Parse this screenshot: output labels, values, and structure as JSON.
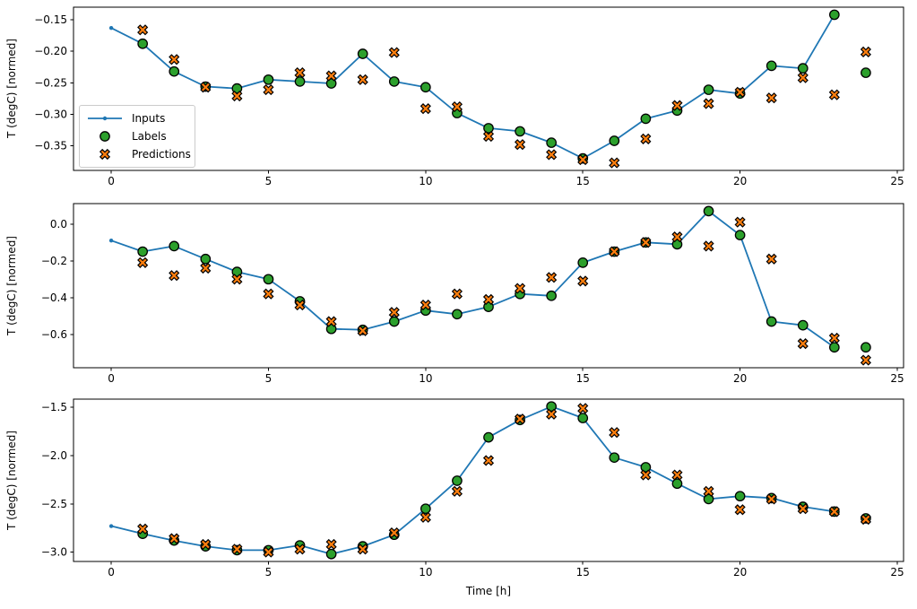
{
  "figure": {
    "xlabel": "Time [h]",
    "ylabel": "T (degC) [normed]",
    "background": "#ffffff",
    "colors": {
      "inputs": "#1f77b4",
      "labels": "#2ca02c",
      "predictions": "#ff7f0e",
      "marker_edge": "#000000",
      "spine": "#000000"
    },
    "legend": {
      "location": "lower left of first subplot",
      "items": [
        {
          "label": "Inputs",
          "marker": "line-with-dot",
          "color": "#1f77b4"
        },
        {
          "label": "Labels",
          "marker": "circle",
          "color": "#2ca02c",
          "edge": "#000000"
        },
        {
          "label": "Predictions",
          "marker": "thick-x",
          "color": "#ff7f0e",
          "edge": "#000000"
        }
      ]
    }
  },
  "chart_data": [
    {
      "type": "line",
      "title": "",
      "xlabel": "",
      "ylabel": "T (degC) [normed]",
      "grid": false,
      "xlim": [
        -1.2,
        25.2
      ],
      "ylim": [
        -0.389,
        -0.13
      ],
      "xticks": {
        "values": [
          0,
          5,
          10,
          15,
          20,
          25
        ],
        "labels": [
          "0",
          "5",
          "10",
          "15",
          "20",
          "25"
        ]
      },
      "yticks": {
        "values": [
          -0.15,
          -0.2,
          -0.25,
          -0.3,
          -0.35
        ],
        "labels": [
          "−0.15",
          "−0.20",
          "−0.25",
          "−0.30",
          "−0.35"
        ]
      },
      "series": [
        {
          "name": "Inputs",
          "plot": "line+marker",
          "color": "#1f77b4",
          "x": [
            0,
            1,
            2,
            3,
            4,
            5,
            6,
            7,
            8,
            9,
            10,
            11,
            12,
            13,
            14,
            15,
            16,
            17,
            18,
            19,
            20,
            21,
            22,
            23
          ],
          "y": [
            -0.163,
            -0.188,
            -0.232,
            -0.256,
            -0.259,
            -0.245,
            -0.248,
            -0.251,
            -0.204,
            -0.248,
            -0.257,
            -0.298,
            -0.322,
            -0.327,
            -0.345,
            -0.37,
            -0.342,
            -0.307,
            -0.294,
            -0.261,
            -0.267,
            -0.223,
            -0.227,
            -0.142
          ]
        },
        {
          "name": "Labels",
          "plot": "scatter",
          "color": "#2ca02c",
          "edge": "#000000",
          "x": [
            1,
            2,
            3,
            4,
            5,
            6,
            7,
            8,
            9,
            10,
            11,
            12,
            13,
            14,
            15,
            16,
            17,
            18,
            19,
            20,
            21,
            22,
            23,
            24
          ],
          "y": [
            -0.188,
            -0.232,
            -0.256,
            -0.259,
            -0.245,
            -0.248,
            -0.251,
            -0.204,
            -0.248,
            -0.257,
            -0.298,
            -0.322,
            -0.327,
            -0.345,
            -0.37,
            -0.342,
            -0.307,
            -0.294,
            -0.261,
            -0.267,
            -0.223,
            -0.227,
            -0.142,
            -0.234
          ]
        },
        {
          "name": "Predictions",
          "plot": "scatter",
          "color": "#ff7f0e",
          "edge": "#000000",
          "x": [
            1,
            2,
            3,
            4,
            5,
            6,
            7,
            8,
            9,
            10,
            11,
            12,
            13,
            14,
            15,
            16,
            17,
            18,
            19,
            20,
            21,
            22,
            23,
            24
          ],
          "y": [
            -0.166,
            -0.213,
            -0.257,
            -0.271,
            -0.261,
            -0.234,
            -0.239,
            -0.245,
            -0.202,
            -0.291,
            -0.288,
            -0.335,
            -0.348,
            -0.364,
            -0.372,
            -0.377,
            -0.339,
            -0.286,
            -0.283,
            -0.265,
            -0.274,
            -0.242,
            -0.269,
            -0.201
          ]
        }
      ]
    },
    {
      "type": "line",
      "title": "",
      "xlabel": "",
      "ylabel": "T (degC) [normed]",
      "grid": false,
      "xlim": [
        -1.2,
        25.2
      ],
      "ylim": [
        -0.781,
        0.111
      ],
      "xticks": {
        "values": [
          0,
          5,
          10,
          15,
          20,
          25
        ],
        "labels": [
          "0",
          "5",
          "10",
          "15",
          "20",
          "25"
        ]
      },
      "yticks": {
        "values": [
          0.0,
          -0.2,
          -0.4,
          -0.6
        ],
        "labels": [
          "0.0",
          "−0.2",
          "−0.4",
          "−0.6"
        ]
      },
      "series": [
        {
          "name": "Inputs",
          "plot": "line+marker",
          "color": "#1f77b4",
          "x": [
            0,
            1,
            2,
            3,
            4,
            5,
            6,
            7,
            8,
            9,
            10,
            11,
            12,
            13,
            14,
            15,
            16,
            17,
            18,
            19,
            20,
            21,
            22,
            23
          ],
          "y": [
            -0.09,
            -0.15,
            -0.12,
            -0.19,
            -0.26,
            -0.3,
            -0.42,
            -0.57,
            -0.575,
            -0.53,
            -0.47,
            -0.49,
            -0.45,
            -0.38,
            -0.39,
            -0.21,
            -0.15,
            -0.1,
            -0.11,
            0.07,
            -0.06,
            -0.53,
            -0.55,
            -0.67
          ]
        },
        {
          "name": "Labels",
          "plot": "scatter",
          "color": "#2ca02c",
          "edge": "#000000",
          "x": [
            1,
            2,
            3,
            4,
            5,
            6,
            7,
            8,
            9,
            10,
            11,
            12,
            13,
            14,
            15,
            16,
            17,
            18,
            19,
            20,
            21,
            22,
            23,
            24
          ],
          "y": [
            -0.15,
            -0.12,
            -0.19,
            -0.26,
            -0.3,
            -0.42,
            -0.57,
            -0.575,
            -0.53,
            -0.47,
            -0.49,
            -0.45,
            -0.38,
            -0.39,
            -0.21,
            -0.15,
            -0.1,
            -0.11,
            0.07,
            -0.06,
            -0.53,
            -0.55,
            -0.67,
            -0.67
          ]
        },
        {
          "name": "Predictions",
          "plot": "scatter",
          "color": "#ff7f0e",
          "edge": "#000000",
          "x": [
            1,
            2,
            3,
            4,
            5,
            6,
            7,
            8,
            9,
            10,
            11,
            12,
            13,
            14,
            15,
            16,
            17,
            18,
            19,
            20,
            21,
            22,
            23,
            24
          ],
          "y": [
            -0.21,
            -0.28,
            -0.24,
            -0.3,
            -0.38,
            -0.44,
            -0.53,
            -0.58,
            -0.48,
            -0.44,
            -0.38,
            -0.41,
            -0.35,
            -0.29,
            -0.31,
            -0.15,
            -0.1,
            -0.07,
            -0.12,
            0.01,
            -0.19,
            -0.65,
            -0.62,
            -0.74
          ]
        }
      ]
    },
    {
      "type": "line",
      "title": "",
      "xlabel": "Time [h]",
      "ylabel": "T (degC) [normed]",
      "grid": false,
      "xlim": [
        -1.2,
        25.2
      ],
      "ylim": [
        -3.097,
        -1.414
      ],
      "xticks": {
        "values": [
          0,
          5,
          10,
          15,
          20,
          25
        ],
        "labels": [
          "0",
          "5",
          "10",
          "15",
          "20",
          "25"
        ]
      },
      "yticks": {
        "values": [
          -1.5,
          -2.0,
          -2.5,
          -3.0
        ],
        "labels": [
          "−1.5",
          "−2.0",
          "−2.5",
          "−3.0"
        ]
      },
      "series": [
        {
          "name": "Inputs",
          "plot": "line+marker",
          "color": "#1f77b4",
          "x": [
            0,
            1,
            2,
            3,
            4,
            5,
            6,
            7,
            8,
            9,
            10,
            11,
            12,
            13,
            14,
            15,
            16,
            17,
            18,
            19,
            20,
            21,
            22,
            23
          ],
          "y": [
            -2.73,
            -2.81,
            -2.88,
            -2.94,
            -2.98,
            -2.98,
            -2.93,
            -3.02,
            -2.94,
            -2.82,
            -2.55,
            -2.26,
            -1.81,
            -1.63,
            -1.49,
            -1.61,
            -2.02,
            -2.12,
            -2.29,
            -2.45,
            -2.42,
            -2.44,
            -2.53,
            -2.58
          ]
        },
        {
          "name": "Labels",
          "plot": "scatter",
          "color": "#2ca02c",
          "edge": "#000000",
          "x": [
            1,
            2,
            3,
            4,
            5,
            6,
            7,
            8,
            9,
            10,
            11,
            12,
            13,
            14,
            15,
            16,
            17,
            18,
            19,
            20,
            21,
            22,
            23,
            24
          ],
          "y": [
            -2.81,
            -2.88,
            -2.94,
            -2.98,
            -2.98,
            -2.93,
            -3.02,
            -2.94,
            -2.82,
            -2.55,
            -2.26,
            -1.81,
            -1.63,
            -1.49,
            -1.61,
            -2.02,
            -2.12,
            -2.29,
            -2.45,
            -2.42,
            -2.44,
            -2.53,
            -2.58,
            -2.65
          ]
        },
        {
          "name": "Predictions",
          "plot": "scatter",
          "color": "#ff7f0e",
          "edge": "#000000",
          "x": [
            1,
            2,
            3,
            4,
            5,
            6,
            7,
            8,
            9,
            10,
            11,
            12,
            13,
            14,
            15,
            16,
            17,
            18,
            19,
            20,
            21,
            22,
            23,
            24
          ],
          "y": [
            -2.76,
            -2.86,
            -2.92,
            -2.97,
            -3.0,
            -2.97,
            -2.92,
            -2.97,
            -2.8,
            -2.64,
            -2.37,
            -2.05,
            -1.62,
            -1.57,
            -1.51,
            -1.76,
            -2.2,
            -2.2,
            -2.37,
            -2.56,
            -2.45,
            -2.55,
            -2.58,
            -2.66
          ]
        }
      ]
    }
  ]
}
